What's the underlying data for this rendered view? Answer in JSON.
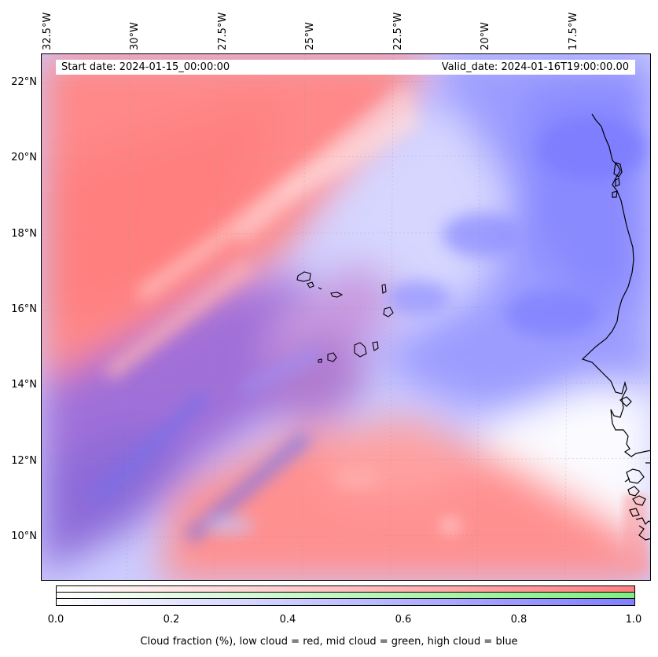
{
  "map": {
    "start_date": "Start date: 2024-01-15_00:00:00",
    "valid_date": "Valid_date: 2024-01-16T19:00:00.00",
    "lon_labels": [
      "32.5°W",
      "30°W",
      "27.5°W",
      "25°W",
      "22.5°W",
      "20°W",
      "17.5°W"
    ],
    "lat_labels": [
      "22°N",
      "20°N",
      "18°N",
      "16°N",
      "14°N",
      "12°N",
      "10°N"
    ],
    "colors": {
      "low_cloud": "#ff8080",
      "mid_cloud": "#80ee80",
      "high_cloud": "#8080ff",
      "clear": "#ffffff",
      "coastline": "#000000"
    }
  },
  "colorbar": {
    "tick_labels": [
      "0.0",
      "0.2",
      "0.4",
      "0.6",
      "0.8",
      "1.0"
    ],
    "title": "Cloud fraction (%), low cloud = red, mid cloud = green, high cloud = blue"
  }
}
